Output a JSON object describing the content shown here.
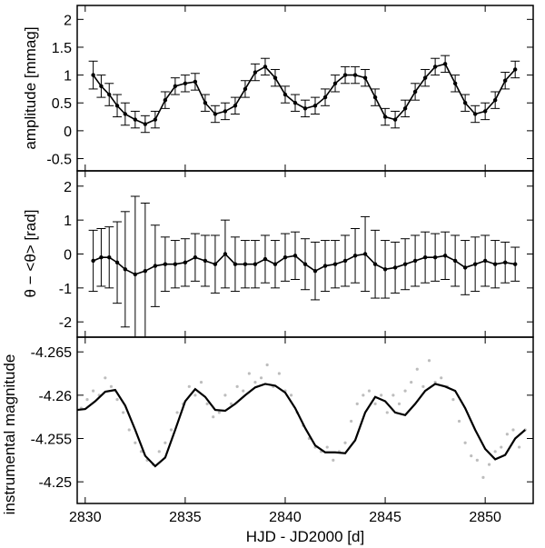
{
  "chart_data": [
    {
      "type": "line",
      "panel": "top",
      "ylabel": "amplitude [mmag]",
      "xlim": [
        2829.6,
        2852.4
      ],
      "ylim": [
        -0.72,
        2.25
      ],
      "yticks": [
        -0.5,
        0,
        0.5,
        1,
        1.5,
        2
      ],
      "yticklabels": [
        "-0.5",
        "0",
        "0.5",
        "1",
        "1.5",
        "2"
      ],
      "grid": false,
      "series": [
        {
          "style": "points-with-errorbars",
          "color": "#000000",
          "x": [
            2830.4,
            2830.8,
            2831.2,
            2831.6,
            2832.0,
            2832.5,
            2833.0,
            2833.5,
            2834.0,
            2834.5,
            2835.0,
            2835.5,
            2836.0,
            2836.5,
            2837.0,
            2837.5,
            2838.0,
            2838.5,
            2839.0,
            2839.5,
            2840.0,
            2840.5,
            2841.0,
            2841.5,
            2842.0,
            2842.5,
            2843.0,
            2843.5,
            2844.0,
            2844.5,
            2845.0,
            2845.5,
            2846.0,
            2846.5,
            2847.0,
            2847.5,
            2848.0,
            2848.5,
            2849.0,
            2849.5,
            2850.0,
            2850.5,
            2851.0,
            2851.5
          ],
          "y": [
            1.0,
            0.8,
            0.65,
            0.45,
            0.3,
            0.2,
            0.12,
            0.2,
            0.55,
            0.8,
            0.85,
            0.88,
            0.5,
            0.3,
            0.35,
            0.45,
            0.75,
            1.05,
            1.15,
            0.95,
            0.65,
            0.5,
            0.4,
            0.45,
            0.6,
            0.85,
            1.0,
            1.0,
            0.95,
            0.6,
            0.25,
            0.2,
            0.4,
            0.7,
            0.95,
            1.15,
            1.2,
            0.85,
            0.5,
            0.3,
            0.35,
            0.55,
            0.9,
            1.1
          ],
          "err": [
            0.25,
            0.2,
            0.2,
            0.2,
            0.2,
            0.15,
            0.15,
            0.15,
            0.15,
            0.15,
            0.15,
            0.15,
            0.15,
            0.15,
            0.15,
            0.15,
            0.15,
            0.15,
            0.15,
            0.15,
            0.15,
            0.15,
            0.15,
            0.15,
            0.15,
            0.15,
            0.15,
            0.15,
            0.15,
            0.15,
            0.15,
            0.15,
            0.15,
            0.15,
            0.15,
            0.15,
            0.15,
            0.15,
            0.15,
            0.15,
            0.15,
            0.15,
            0.15,
            0.15
          ]
        }
      ]
    },
    {
      "type": "line",
      "panel": "middle",
      "ylabel": "θ − <θ> [rad]",
      "xlim": [
        2829.6,
        2852.4
      ],
      "ylim": [
        -2.45,
        2.45
      ],
      "yticks": [
        -2,
        -1,
        0,
        1,
        2
      ],
      "yticklabels": [
        "-2",
        "-1",
        "0",
        "1",
        "2"
      ],
      "grid": false,
      "series": [
        {
          "style": "points-with-errorbars",
          "color": "#000000",
          "x": [
            2830.4,
            2830.8,
            2831.2,
            2831.6,
            2832.0,
            2832.5,
            2833.0,
            2833.5,
            2834.0,
            2834.5,
            2835.0,
            2835.5,
            2836.0,
            2836.5,
            2837.0,
            2837.5,
            2838.0,
            2838.5,
            2839.0,
            2839.5,
            2840.0,
            2840.5,
            2841.0,
            2841.5,
            2842.0,
            2842.5,
            2843.0,
            2843.5,
            2844.0,
            2844.5,
            2845.0,
            2845.5,
            2846.0,
            2846.5,
            2847.0,
            2847.5,
            2848.0,
            2848.5,
            2849.0,
            2849.5,
            2850.0,
            2850.5,
            2851.0,
            2851.5
          ],
          "y": [
            -0.2,
            -0.1,
            -0.1,
            -0.25,
            -0.45,
            -0.6,
            -0.5,
            -0.35,
            -0.3,
            -0.3,
            -0.25,
            -0.1,
            -0.2,
            -0.3,
            0.0,
            -0.3,
            -0.3,
            -0.3,
            -0.15,
            -0.3,
            -0.1,
            -0.05,
            -0.3,
            -0.5,
            -0.35,
            -0.3,
            -0.2,
            -0.05,
            0.0,
            -0.3,
            -0.45,
            -0.4,
            -0.3,
            -0.2,
            -0.1,
            -0.1,
            -0.05,
            -0.2,
            -0.4,
            -0.3,
            -0.2,
            -0.3,
            -0.25,
            -0.3
          ],
          "err": [
            0.9,
            0.85,
            0.9,
            1.2,
            1.7,
            2.3,
            2.0,
            1.2,
            0.8,
            0.7,
            0.7,
            0.7,
            0.75,
            0.85,
            1.0,
            0.8,
            0.7,
            0.7,
            0.7,
            0.7,
            0.7,
            0.7,
            0.75,
            0.85,
            0.75,
            0.7,
            0.75,
            0.8,
            1.1,
            1.0,
            0.85,
            0.75,
            0.75,
            0.75,
            0.75,
            0.7,
            0.7,
            0.75,
            0.8,
            0.8,
            0.75,
            0.7,
            0.6,
            0.5
          ]
        }
      ]
    },
    {
      "type": "scatter",
      "panel": "bottom",
      "xlabel": "HJD - JD2000 [d]",
      "ylabel": "instrumental magnitude",
      "xlim": [
        2829.6,
        2852.4
      ],
      "ylim": [
        -4.2667,
        -4.2475
      ],
      "y_inverted": true,
      "xticks": [
        2830,
        2835,
        2840,
        2845,
        2850
      ],
      "xticklabels": [
        "2830",
        "2835",
        "2840",
        "2845",
        "2850"
      ],
      "yticks": [
        -4.265,
        -4.26,
        -4.255,
        -4.25
      ],
      "yticklabels": [
        "-4.265",
        "-4.26",
        "-4.255",
        "-4.25"
      ],
      "grid": false,
      "series": [
        {
          "style": "scatter",
          "color": "#bdbdbd",
          "x": [
            2829.8,
            2830.1,
            2830.4,
            2830.7,
            2831.0,
            2831.3,
            2831.6,
            2831.9,
            2832.2,
            2832.5,
            2832.8,
            2833.1,
            2833.4,
            2833.7,
            2834.0,
            2834.3,
            2834.6,
            2834.9,
            2835.2,
            2835.5,
            2835.8,
            2836.1,
            2836.4,
            2836.7,
            2837.0,
            2837.3,
            2837.6,
            2837.9,
            2838.2,
            2838.5,
            2838.8,
            2839.1,
            2839.4,
            2839.7,
            2840.0,
            2840.3,
            2840.6,
            2840.9,
            2841.2,
            2841.5,
            2841.8,
            2842.1,
            2842.4,
            2842.7,
            2843.0,
            2843.3,
            2843.6,
            2843.9,
            2844.2,
            2844.5,
            2844.8,
            2845.1,
            2845.4,
            2845.7,
            2846.0,
            2846.3,
            2846.6,
            2846.9,
            2847.2,
            2847.5,
            2847.8,
            2848.1,
            2848.4,
            2848.7,
            2849.0,
            2849.3,
            2849.6,
            2849.9,
            2850.2,
            2850.5,
            2850.8,
            2851.1,
            2851.4,
            2851.7,
            2852.0
          ],
          "y": [
            -4.2585,
            -4.2595,
            -4.2605,
            -4.26,
            -4.262,
            -4.261,
            -4.2595,
            -4.258,
            -4.256,
            -4.2545,
            -4.2535,
            -4.2525,
            -4.252,
            -4.2535,
            -4.2545,
            -4.256,
            -4.258,
            -4.259,
            -4.261,
            -4.26,
            -4.2615,
            -4.259,
            -4.2575,
            -4.258,
            -4.26,
            -4.259,
            -4.261,
            -4.2605,
            -4.2625,
            -4.2615,
            -4.262,
            -4.2635,
            -4.261,
            -4.2625,
            -4.2605,
            -4.26,
            -4.258,
            -4.2565,
            -4.255,
            -4.254,
            -4.2535,
            -4.254,
            -4.2525,
            -4.2535,
            -4.2545,
            -4.257,
            -4.259,
            -4.26,
            -4.2605,
            -4.259,
            -4.26,
            -4.258,
            -4.26,
            -4.259,
            -4.2605,
            -4.2615,
            -4.263,
            -4.261,
            -4.264,
            -4.2615,
            -4.262,
            -4.261,
            -4.2595,
            -4.257,
            -4.2545,
            -4.253,
            -4.2525,
            -4.2505,
            -4.252,
            -4.2535,
            -4.254,
            -4.2555,
            -4.256,
            -4.254,
            -4.256
          ]
        },
        {
          "style": "line",
          "color": "#000000",
          "x": [
            2829.6,
            2830.0,
            2830.5,
            2831.0,
            2831.5,
            2832.0,
            2832.5,
            2833.0,
            2833.5,
            2834.0,
            2834.5,
            2835.0,
            2835.5,
            2836.0,
            2836.5,
            2837.0,
            2837.5,
            2838.0,
            2838.5,
            2839.0,
            2839.5,
            2840.0,
            2840.5,
            2841.0,
            2841.5,
            2842.0,
            2842.5,
            2843.0,
            2843.5,
            2844.0,
            2844.5,
            2845.0,
            2845.5,
            2846.0,
            2846.5,
            2847.0,
            2847.5,
            2848.0,
            2848.5,
            2849.0,
            2849.5,
            2850.0,
            2850.5,
            2851.0,
            2851.5,
            2852.0
          ],
          "y": [
            -4.2583,
            -4.2584,
            -4.2593,
            -4.2604,
            -4.2606,
            -4.2588,
            -4.256,
            -4.253,
            -4.2518,
            -4.2528,
            -4.256,
            -4.2593,
            -4.2607,
            -4.2598,
            -4.2583,
            -4.2582,
            -4.259,
            -4.26,
            -4.2609,
            -4.2613,
            -4.2611,
            -4.2603,
            -4.2585,
            -4.2562,
            -4.2542,
            -4.2534,
            -4.2534,
            -4.2533,
            -4.2548,
            -4.258,
            -4.2598,
            -4.2593,
            -4.258,
            -4.2577,
            -4.259,
            -4.2605,
            -4.2613,
            -4.261,
            -4.2605,
            -4.2585,
            -4.256,
            -4.2538,
            -4.2526,
            -4.2531,
            -4.255,
            -4.256
          ]
        }
      ]
    }
  ]
}
